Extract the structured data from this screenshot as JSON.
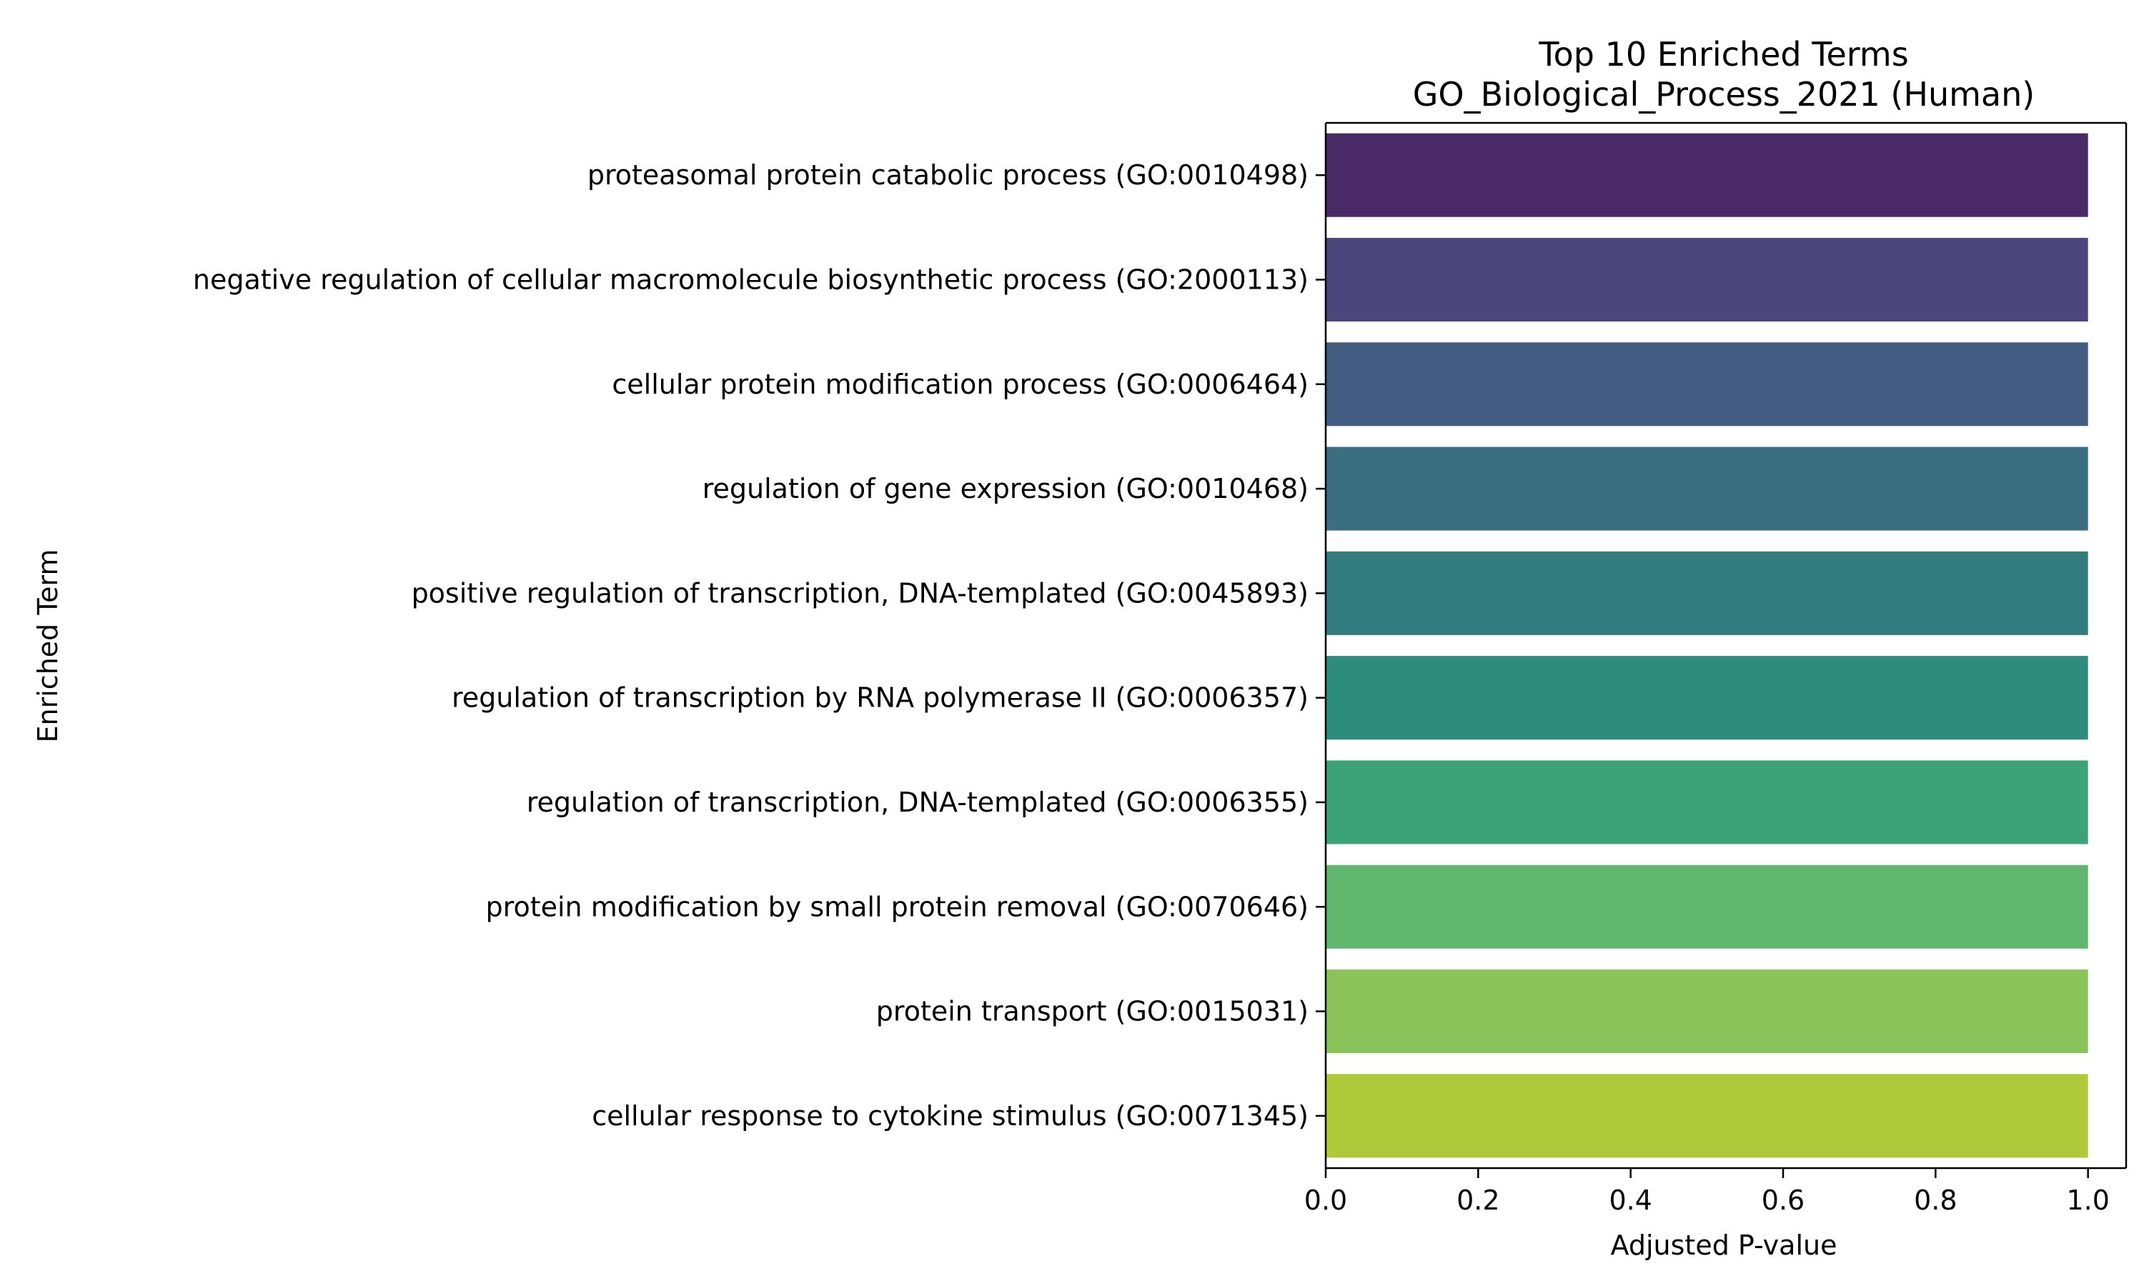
{
  "chart_data": {
    "type": "bar",
    "orientation": "horizontal",
    "title": "Top 10 Enriched Terms",
    "subtitle": "GO_Biological_Process_2021 (Human)",
    "xlabel": "Adjusted P-value",
    "ylabel": "Enriched Term",
    "xlim": [
      0.0,
      1.05
    ],
    "xticks": [
      "0.0",
      "0.2",
      "0.4",
      "0.6",
      "0.8",
      "1.0"
    ],
    "grid": false,
    "categories": [
      "proteasomal protein catabolic process (GO:0010498)",
      "negative regulation of cellular macromolecule biosynthetic process (GO:2000113)",
      "cellular protein modification process (GO:0006464)",
      "regulation of gene expression (GO:0010468)",
      "positive regulation of transcription, DNA-templated (GO:0045893)",
      "regulation of transcription by RNA polymerase II (GO:0006357)",
      "regulation of transcription, DNA-templated (GO:0006355)",
      "protein modification by small protein removal (GO:0070646)",
      "protein transport (GO:0015031)",
      "cellular response to cytokine stimulus (GO:0071345)"
    ],
    "values": [
      1.0,
      1.0,
      1.0,
      1.0,
      1.0,
      1.0,
      1.0,
      1.0,
      1.0,
      1.0
    ],
    "colors": [
      "#4a2a66",
      "#4b477c",
      "#435c82",
      "#3b6e81",
      "#327c7f",
      "#2e8c7c",
      "#3ca277",
      "#61b66e",
      "#8bc35b",
      "#b0c93a"
    ]
  }
}
